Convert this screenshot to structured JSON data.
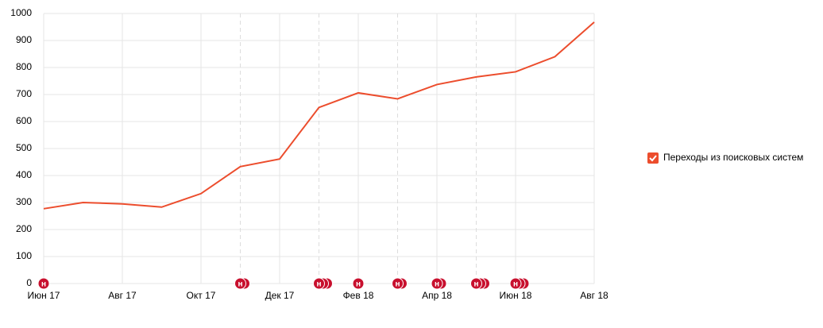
{
  "chart_data": {
    "type": "line",
    "categories": [
      "Июн 17",
      null,
      "Авг 17",
      null,
      "Окт 17",
      null,
      "Дек 17",
      null,
      "Фев 18",
      null,
      "Апр 18",
      null,
      "Июн 18",
      null,
      "Авг 18"
    ],
    "series": [
      {
        "name": "Переходы из поисковых систем",
        "color": "#ec4d2d",
        "values": [
          277,
          300,
          295,
          283,
          333,
          433,
          461,
          652,
          706,
          684,
          737,
          765,
          784,
          840,
          968
        ]
      }
    ],
    "ylim": [
      0,
      1000
    ],
    "yticks": [
      0,
      100,
      200,
      300,
      400,
      500,
      600,
      700,
      800,
      900,
      1000
    ],
    "grid": true,
    "legend": "right",
    "annotations": [
      {
        "at": 0,
        "label": "н",
        "count": 1
      },
      {
        "at": 5,
        "label": "н",
        "count": 2
      },
      {
        "at": 7,
        "label": "н",
        "count": 3
      },
      {
        "at": 8,
        "label": "н",
        "count": 1
      },
      {
        "at": 9,
        "label": "н",
        "count": 2
      },
      {
        "at": 10,
        "label": "н",
        "count": 2
      },
      {
        "at": 11,
        "label": "н",
        "count": 3
      },
      {
        "at": 12,
        "label": "н",
        "count": 3
      }
    ]
  }
}
